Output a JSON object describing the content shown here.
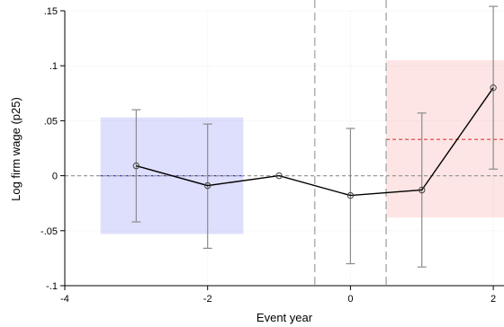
{
  "chart_data": {
    "type": "line",
    "title": "",
    "xlabel": "Event year",
    "ylabel": "Log firm wage (p25)",
    "xlim": [
      -4,
      2.15
    ],
    "ylim": [
      -0.1,
      0.15
    ],
    "grid": true,
    "x_ticks": [
      -4,
      -2,
      0,
      2
    ],
    "x_tick_labels": [
      "-4",
      "-2",
      "0",
      "2"
    ],
    "y_ticks": [
      -0.1,
      -0.05,
      0,
      0.05,
      0.1,
      0.15
    ],
    "y_tick_labels": [
      "-.1",
      "-.05",
      "0",
      ".05",
      ".1",
      ".15"
    ],
    "series": [
      {
        "x": [
          -3,
          -2,
          -1,
          0,
          1,
          2
        ],
        "y": [
          0.009,
          -0.009,
          0.0,
          -0.018,
          -0.013,
          0.08
        ],
        "ci_low": [
          -0.042,
          -0.066,
          null,
          -0.08,
          -0.083,
          0.006
        ],
        "ci_high": [
          0.06,
          0.047,
          null,
          0.043,
          0.057,
          0.154
        ]
      }
    ],
    "zero_line": 0,
    "vertical_lines": [
      -0.5,
      0.5
    ],
    "shaded_regions": [
      {
        "x": [
          -3.5,
          -1.5
        ],
        "y": [
          -0.053,
          0.053
        ],
        "color": "#6b6bf5",
        "mean": 0.0,
        "mean_color": "#3a3aa8"
      },
      {
        "x": [
          0.5,
          2.15
        ],
        "y": [
          -0.038,
          0.105
        ],
        "color": "#f58a8a",
        "mean": 0.033,
        "mean_color": "#e03a3a"
      }
    ],
    "colors": {
      "line": "#000000",
      "ci": "#8c8c8c",
      "grid": "#e6e6e6",
      "reference": "#9a9a9a"
    }
  }
}
